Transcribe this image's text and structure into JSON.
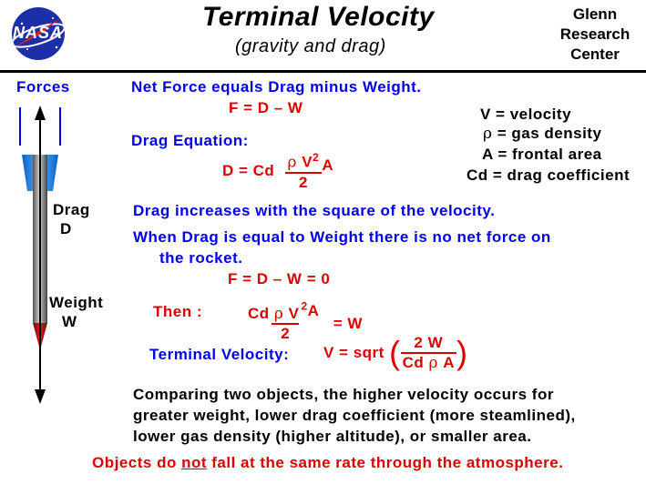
{
  "logo": {
    "text": "NASA"
  },
  "header": {
    "title": "Terminal Velocity",
    "subtitle": "(gravity and drag)",
    "center_line1": "Glenn",
    "center_line2": "Research",
    "center_line3": "Center"
  },
  "rocket": {
    "forces_label": "Forces",
    "drag_label": "Drag",
    "drag_symbol": "D",
    "weight_label": "Weight",
    "weight_symbol": "W"
  },
  "net_force": {
    "text": "Net Force equals Drag minus Weight.",
    "equation": "F = D – W"
  },
  "legend": {
    "v": "V = velocity",
    "rho_sym": "ρ",
    "rho": " = gas density",
    "a": "A = frontal area",
    "cd": "Cd = drag coefficient"
  },
  "drag_equation": {
    "label": "Drag Equation:",
    "lhs": "D = Cd",
    "rho": "ρ",
    "v": "V",
    "exp": "2",
    "a": "A",
    "denom": "2"
  },
  "statements": {
    "square": "Drag increases with the square of the velocity.",
    "equal_line1": "When Drag is equal to Weight there is no net force on",
    "equal_line2": "the rocket.",
    "zero_equation": "F = D – W = 0"
  },
  "then_equation": {
    "label": "Then :",
    "cd": "Cd",
    "rho": "ρ",
    "v": "V",
    "exp": "2",
    "a": "A",
    "denom": "2",
    "rhs": "= W"
  },
  "terminal": {
    "label": "Terminal Velocity:",
    "lhs": "V = sqrt",
    "numer": "2 W",
    "denom_cd": "Cd",
    "denom_rho": "ρ",
    "denom_a": "A"
  },
  "comparison": {
    "line1": "Comparing two objects, the higher velocity occurs for",
    "line2": "greater weight, lower drag coefficient (more steamlined),",
    "line3": "lower gas density (higher altitude), or smaller area."
  },
  "conclusion": {
    "before": "Objects do ",
    "emph": "not",
    "after": " fall at the same rate through the atmosphere."
  }
}
